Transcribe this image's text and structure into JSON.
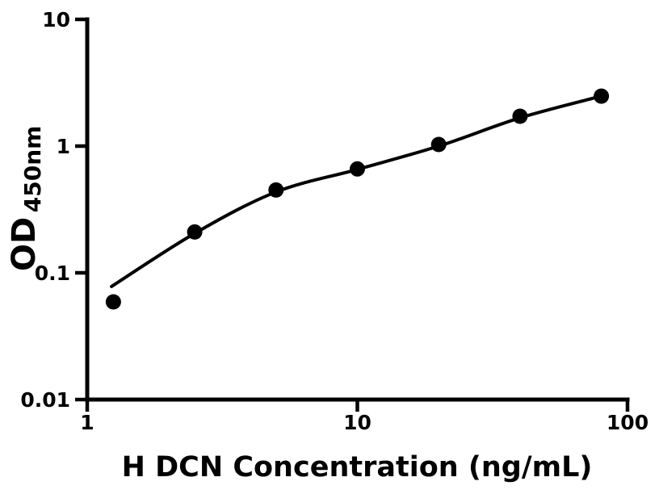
{
  "figure": {
    "background_color": "#ffffff",
    "foreground_color": "#000000"
  },
  "chart_data": {
    "type": "scatter",
    "title": "",
    "xlabel": "H DCN Concentration (ng/mL)",
    "ylabel": "OD",
    "ylabel_subscript": "450nm",
    "x_scale": "log",
    "y_scale": "log",
    "xlim": [
      1,
      100
    ],
    "ylim": [
      0.01,
      10
    ],
    "grid": false,
    "legend": null,
    "marker_color": "#000000",
    "line_color": "#000000",
    "x_ticks": [
      {
        "value": 1,
        "label": "1"
      },
      {
        "value": 10,
        "label": "10"
      },
      {
        "value": 100,
        "label": "100"
      }
    ],
    "y_ticks": [
      {
        "value": 10,
        "label": "10"
      },
      {
        "value": 1,
        "label": "1"
      },
      {
        "value": 0.1,
        "label": "0.1"
      },
      {
        "value": 0.01,
        "label": "0.01"
      }
    ],
    "series": [
      {
        "name": "standard-data-points",
        "type": "scatter",
        "marker": "filled-circle",
        "x": [
          1.25,
          2.5,
          5,
          10,
          20,
          40,
          80
        ],
        "y": [
          0.059,
          0.21,
          0.45,
          0.66,
          1.03,
          1.72,
          2.48
        ]
      },
      {
        "name": "fitted-standard-curve",
        "type": "line",
        "x": [
          1.23,
          2.5,
          5,
          10,
          20,
          40,
          80
        ],
        "y": [
          0.078,
          0.205,
          0.435,
          0.655,
          1.0,
          1.67,
          2.48
        ]
      }
    ]
  }
}
